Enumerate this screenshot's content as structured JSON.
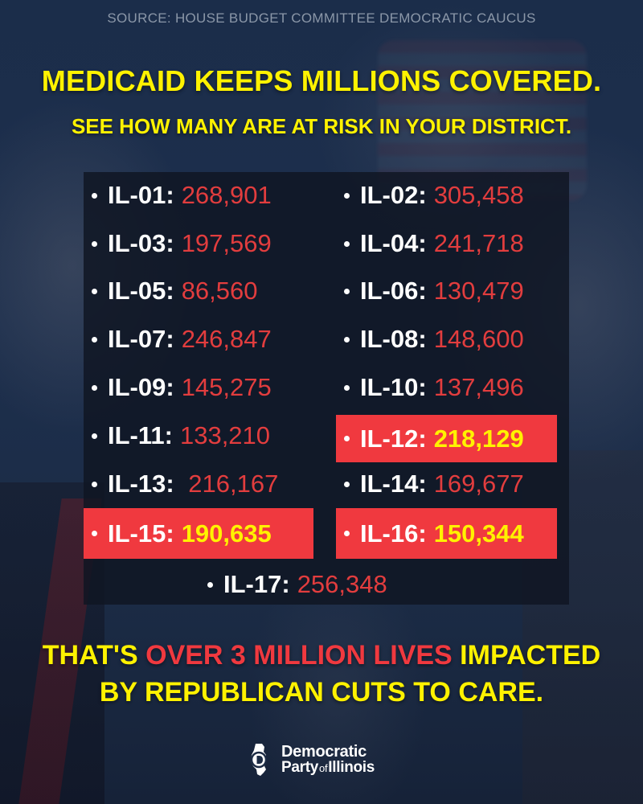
{
  "source": "SOURCE: HOUSE BUDGET COMMITTEE DEMOCRATIC CAUCUS",
  "headline": "MEDICAID KEEPS MILLIONS COVERED.",
  "subheadline": "SEE HOW MANY ARE AT RISK IN YOUR DISTRICT.",
  "districts": [
    {
      "code": "IL-01:",
      "value": "268,901",
      "highlighted": false
    },
    {
      "code": "IL-02:",
      "value": "305,458",
      "highlighted": false
    },
    {
      "code": "IL-03:",
      "value": "197,569",
      "highlighted": false
    },
    {
      "code": "IL-04:",
      "value": "241,718",
      "highlighted": false
    },
    {
      "code": "IL-05:",
      "value": "86,560",
      "highlighted": false
    },
    {
      "code": "IL-06:",
      "value": "130,479",
      "highlighted": false
    },
    {
      "code": "IL-07:",
      "value": "246,847",
      "highlighted": false
    },
    {
      "code": "IL-08:",
      "value": "148,600",
      "highlighted": false
    },
    {
      "code": "IL-09:",
      "value": "145,275",
      "highlighted": false
    },
    {
      "code": "IL-10:",
      "value": "137,496",
      "highlighted": false
    },
    {
      "code": "IL-11:",
      "value": "133,210",
      "highlighted": false
    },
    {
      "code": "IL-12:",
      "value": "218,129",
      "highlighted": true
    },
    {
      "code": "IL-13:",
      "value": " 216,167",
      "highlighted": false
    },
    {
      "code": "IL-14:",
      "value": "169,677",
      "highlighted": false
    },
    {
      "code": "IL-15:",
      "value": "190,635",
      "highlighted": true
    },
    {
      "code": "IL-16:",
      "value": "150,344",
      "highlighted": true
    },
    {
      "code": "IL-17:",
      "value": "256,348",
      "highlighted": false
    }
  ],
  "footer": {
    "line1_pre": "THAT'S ",
    "line1_highlight": "OVER 3 MILLION LIVES",
    "line1_post": " IMPACTED",
    "line2": "BY REPUBLICAN CUTS TO CARE."
  },
  "logo": {
    "line1": "Democratic",
    "line2_a": "Party",
    "line2_b": "of",
    "line2_c": "Illinois"
  },
  "colors": {
    "accent_yellow": "#fff200",
    "accent_red": "#f0393f",
    "number_red": "#e23d3e",
    "background": "#1c2b44"
  }
}
